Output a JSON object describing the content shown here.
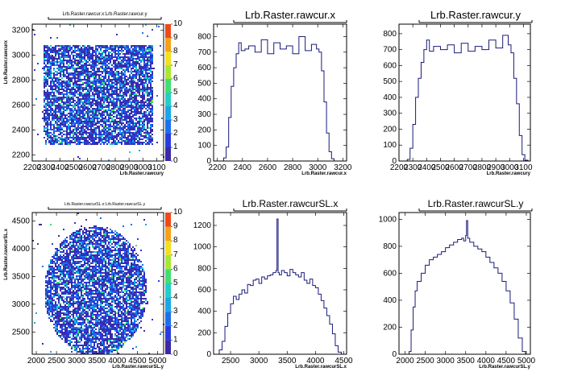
{
  "chart_data": [
    {
      "id": "p1",
      "type": "heatmap",
      "title": "Lrb.Raster.rawcur.x:Lrb.Raster.rawcur.y",
      "xlabel": "Lrb.Raster.rawcury",
      "ylabel": "Lrb.Raster.rawcurx",
      "xlim": [
        2200,
        3150
      ],
      "ylim": [
        2150,
        3250
      ],
      "x_ticks": [
        "2200",
        "2300",
        "2400",
        "2500",
        "2600",
        "2700",
        "2800",
        "2900",
        "3000",
        "3100"
      ],
      "y_ticks": [
        "2200",
        "2400",
        "2600",
        "2800",
        "3000",
        "3200"
      ],
      "region": {
        "shape": "rect",
        "x": [
          2270,
          3070
        ],
        "y": [
          2290,
          3090
        ]
      },
      "z_ticks": [
        "0",
        "1",
        "2",
        "3",
        "4",
        "5",
        "6",
        "7",
        "8",
        "9",
        "10"
      ],
      "zlim": [
        0,
        10
      ]
    },
    {
      "id": "p2",
      "type": "line",
      "title": "Lrb.Raster.rawcur.x",
      "xlabel": "Lrb.Raster.rawcur.x",
      "ylabel": "",
      "xlim": [
        2170,
        3230
      ],
      "ylim": [
        0,
        880
      ],
      "x_ticks": [
        "2200",
        "2400",
        "2600",
        "2800",
        "3000",
        "3200"
      ],
      "y_ticks": [
        "0",
        "100",
        "200",
        "300",
        "400",
        "500",
        "600",
        "700",
        "800"
      ],
      "x": [
        2250,
        2270,
        2290,
        2310,
        2330,
        2350,
        2370,
        2390,
        2420,
        2450,
        2500,
        2550,
        2600,
        2650,
        2700,
        2750,
        2800,
        2850,
        2900,
        2950,
        2990,
        3010,
        3030,
        3050,
        3070,
        3090,
        3110,
        3130
      ],
      "y": [
        20,
        90,
        280,
        480,
        600,
        690,
        760,
        710,
        720,
        740,
        700,
        780,
        690,
        760,
        720,
        740,
        690,
        800,
        710,
        750,
        720,
        700,
        580,
        380,
        180,
        60,
        15,
        0
      ]
    },
    {
      "id": "p3",
      "type": "line",
      "title": "Lrb.Raster.rawcur.y",
      "xlabel": "Lrb.Raster.rawcury",
      "ylabel": "",
      "xlim": [
        2200,
        3150
      ],
      "ylim": [
        0,
        860
      ],
      "x_ticks": [
        "2200",
        "2300",
        "2400",
        "2500",
        "2600",
        "2700",
        "2800",
        "2900",
        "3000",
        "3100"
      ],
      "y_ticks": [
        "0",
        "100",
        "200",
        "300",
        "400",
        "500",
        "600",
        "700",
        "800"
      ],
      "x": [
        2260,
        2280,
        2300,
        2320,
        2340,
        2360,
        2380,
        2400,
        2420,
        2450,
        2500,
        2550,
        2600,
        2650,
        2700,
        2750,
        2800,
        2850,
        2900,
        2950,
        2990,
        3010,
        3030,
        3050,
        3070,
        3090,
        3110
      ],
      "y": [
        10,
        80,
        230,
        400,
        520,
        620,
        700,
        760,
        690,
        720,
        700,
        730,
        680,
        740,
        690,
        720,
        700,
        760,
        710,
        790,
        730,
        680,
        520,
        360,
        160,
        40,
        5
      ]
    },
    {
      "id": "p4",
      "type": "heatmap",
      "title": "Lrb.Raster.rawcurSL.x:Lrb.Raster.rawcurSL.y",
      "xlabel": "Lrb.Raster.rawcurSL.y",
      "ylabel": "Lrb.Raster.rawcurSL.x",
      "xlim": [
        1900,
        5150
      ],
      "ylim": [
        2100,
        4650
      ],
      "x_ticks": [
        "2000",
        "2500",
        "3000",
        "3500",
        "4000",
        "4500",
        "5000"
      ],
      "y_ticks": [
        "2500",
        "3000",
        "3500",
        "4000",
        "4500"
      ],
      "region": {
        "shape": "ellipse",
        "cx": 3450,
        "cy": 3250,
        "rx": 1270,
        "ry": 1170
      },
      "z_ticks": [
        "0",
        "1",
        "2",
        "3",
        "4",
        "5",
        "6",
        "7",
        "8",
        "9",
        "10"
      ],
      "zlim": [
        0,
        10
      ]
    },
    {
      "id": "p5",
      "type": "line",
      "title": "Lrb.Raster.rawcurSL.x",
      "xlabel": "Lrb.Raster.rawcurSL.x",
      "ylabel": "",
      "xlim": [
        2200,
        4550
      ],
      "ylim": [
        0,
        1320
      ],
      "x_ticks": [
        "2500",
        "3000",
        "3500",
        "4000",
        "4500"
      ],
      "y_ticks": [
        "0",
        "200",
        "400",
        "600",
        "800",
        "1000",
        "1200"
      ],
      "x": [
        2300,
        2350,
        2400,
        2450,
        2500,
        2550,
        2600,
        2650,
        2700,
        2750,
        2800,
        2850,
        2900,
        2950,
        3000,
        3050,
        3100,
        3150,
        3200,
        3250,
        3300,
        3320,
        3340,
        3360,
        3400,
        3450,
        3500,
        3550,
        3600,
        3650,
        3700,
        3750,
        3800,
        3850,
        3900,
        3950,
        4000,
        4050,
        4100,
        4150,
        4200,
        4250,
        4300,
        4350,
        4400
      ],
      "y": [
        40,
        120,
        260,
        380,
        470,
        540,
        510,
        560,
        600,
        570,
        650,
        640,
        690,
        700,
        660,
        720,
        700,
        730,
        740,
        760,
        780,
        1260,
        760,
        740,
        780,
        760,
        730,
        790,
        760,
        740,
        720,
        760,
        690,
        660,
        700,
        640,
        620,
        560,
        500,
        430,
        360,
        280,
        190,
        80,
        20
      ]
    },
    {
      "id": "p6",
      "type": "line",
      "title": "Lrb.Raster.rawcurSL.y",
      "xlabel": "Lrb.Raster.rawcurSL.y",
      "ylabel": "",
      "xlim": [
        1850,
        5100
      ],
      "ylim": [
        0,
        1050
      ],
      "x_ticks": [
        "2000",
        "2500",
        "3000",
        "3500",
        "4000",
        "4500",
        "5000"
      ],
      "y_ticks": [
        "0",
        "200",
        "400",
        "600",
        "800",
        "1000"
      ],
      "x": [
        2100,
        2150,
        2200,
        2250,
        2300,
        2400,
        2500,
        2600,
        2700,
        2800,
        2900,
        3000,
        3100,
        3200,
        3300,
        3400,
        3450,
        3500,
        3520,
        3550,
        3600,
        3700,
        3800,
        3900,
        4000,
        4100,
        4200,
        4300,
        4400,
        4500,
        4600,
        4700,
        4800,
        4900
      ],
      "y": [
        20,
        180,
        350,
        470,
        540,
        600,
        660,
        700,
        720,
        740,
        760,
        790,
        810,
        830,
        850,
        860,
        840,
        880,
        990,
        860,
        830,
        800,
        780,
        760,
        720,
        680,
        640,
        600,
        540,
        470,
        380,
        260,
        120,
        20
      ]
    }
  ]
}
